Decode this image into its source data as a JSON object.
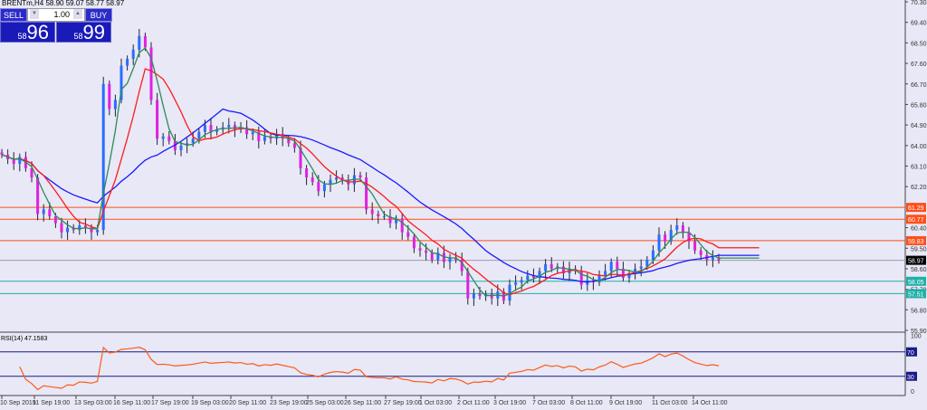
{
  "header": {
    "title": "BRENTm,H4  58.90 59.07 58.77 58.97"
  },
  "trade_panel": {
    "sell_label": "SELL",
    "buy_label": "BUY",
    "lot": "1.00",
    "bid_small": "58",
    "bid_big": "96",
    "ask_small": "58",
    "ask_big": "99",
    "down": "▼",
    "up": "▲"
  },
  "price_axis": [
    "70.30",
    "69.40",
    "68.50",
    "67.60",
    "66.70",
    "65.80",
    "64.90",
    "64.00",
    "63.10",
    "62.20",
    "60.40",
    "59.50",
    "58.60",
    "57.70",
    "56.80",
    "55.90"
  ],
  "levels": [
    {
      "value": "61.29",
      "color": "#ff4f1a"
    },
    {
      "value": "60.77",
      "color": "#ff4f1a"
    },
    {
      "value": "59.83",
      "color": "#ff4f1a"
    },
    {
      "value": "58.97",
      "color": "#000000"
    },
    {
      "value": "58.05",
      "color": "#20b0a8"
    },
    {
      "value": "57.51",
      "color": "#20b0a8"
    }
  ],
  "rsi": {
    "label": "RSI(14) 47.1583",
    "axis": [
      "100",
      "70",
      "30",
      "0"
    ]
  },
  "time_axis": [
    "10 Sep 2019",
    "11 Sep 19:00",
    "13 Sep 03:00",
    "16 Sep 11:00",
    "17 Sep 19:00",
    "19 Sep 03:00",
    "20 Sep 11:00",
    "23 Sep 19:00",
    "25 Sep 03:00",
    "26 Sep 11:00",
    "27 Sep 19:00",
    "1 Oct 03:00",
    "2 Oct 11:00",
    "3 Oct 19:00",
    "7 Oct 03:00",
    "8 Oct 11:00",
    "9 Oct 19:00",
    "11 Oct 03:00",
    "14 Oct 11:00"
  ],
  "colors": {
    "bull": "#2a6cff",
    "bear": "#e020e0",
    "ma_fast": "#2e8b57",
    "ma_mid": "#ff1a1a",
    "ma_slow": "#1a1aff",
    "rsi": "#ff5a14"
  },
  "chart_data": {
    "type": "candlestick",
    "closes": [
      63.6,
      63.4,
      63.2,
      63.5,
      63.0,
      62.6,
      61.0,
      61.2,
      60.9,
      60.6,
      60.2,
      60.4,
      60.3,
      60.5,
      60.4,
      60.2,
      60.3,
      66.7,
      65.6,
      66.0,
      67.5,
      67.8,
      68.2,
      68.8,
      68.3,
      66.0,
      64.3,
      64.4,
      64.2,
      63.8,
      64.0,
      64.1,
      64.3,
      64.6,
      64.9,
      64.6,
      64.7,
      64.8,
      64.9,
      64.7,
      64.8,
      64.5,
      64.6,
      64.2,
      64.4,
      64.3,
      64.5,
      64.3,
      64.1,
      63.9,
      63.0,
      62.6,
      62.4,
      62.0,
      62.3,
      62.5,
      62.6,
      62.5,
      62.3,
      62.7,
      62.6,
      61.2,
      61.0,
      60.9,
      60.9,
      60.6,
      60.8,
      60.2,
      60.0,
      59.5,
      59.4,
      59.3,
      59.0,
      59.3,
      58.9,
      59.1,
      59.0,
      58.5,
      57.3,
      57.5,
      57.4,
      57.5,
      57.3,
      57.6,
      57.2,
      57.9,
      58.0,
      58.1,
      58.3,
      58.2,
      58.5,
      58.8,
      58.6,
      58.7,
      58.4,
      58.6,
      58.5,
      57.9,
      58.1,
      58.0,
      58.3,
      58.5,
      58.9,
      58.6,
      58.2,
      58.4,
      58.6,
      58.7,
      59.0,
      59.4,
      60.1,
      59.8,
      60.3,
      60.5,
      60.2,
      59.8,
      59.4,
      59.2,
      59.0,
      59.1,
      58.97
    ],
    "ylim": [
      55.9,
      70.3
    ]
  }
}
